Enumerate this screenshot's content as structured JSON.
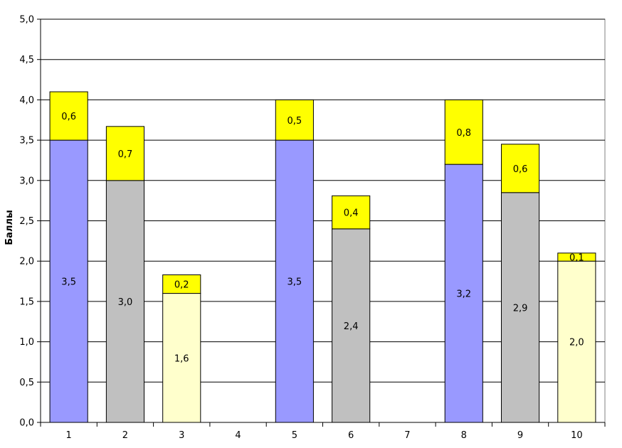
{
  "chart_data": {
    "type": "bar",
    "stacked": true,
    "title": "",
    "xlabel": "",
    "ylabel": "Баллы",
    "ylim": [
      0,
      5
    ],
    "grid": true,
    "categories": [
      "1",
      "2",
      "3",
      "4",
      "5",
      "6",
      "7",
      "8",
      "9",
      "10"
    ],
    "y_ticks": [
      "0,0",
      "0,5",
      "1,0",
      "1,5",
      "2,0",
      "2,5",
      "3,0",
      "3,5",
      "4,0",
      "4,5",
      "5,0"
    ],
    "y_tick_values": [
      0,
      0.5,
      1,
      1.5,
      2,
      2.5,
      3,
      3.5,
      4,
      4.5,
      5
    ],
    "series": [
      {
        "role": "base",
        "values": [
          3.5,
          3.0,
          1.6,
          null,
          3.5,
          2.4,
          null,
          3.2,
          2.85,
          2.0
        ],
        "labels": [
          "3,5",
          "3,0",
          "1,6",
          "",
          "3,5",
          "2,4",
          "",
          "3,2",
          "2,9",
          "2,0"
        ],
        "colors": [
          "#9999ff",
          "#c0c0c0",
          "#ffffcc",
          "",
          "#9999ff",
          "#c0c0c0",
          "",
          "#9999ff",
          "#c0c0c0",
          "#ffffcc"
        ]
      },
      {
        "role": "top",
        "values": [
          0.6,
          0.67,
          0.23,
          null,
          0.5,
          0.41,
          null,
          0.8,
          0.6,
          0.1
        ],
        "labels": [
          "0,6",
          "0,7",
          "0,2",
          "",
          "0,5",
          "0,4",
          "",
          "0,8",
          "0,6",
          "0,1"
        ],
        "color": "#ffff00"
      }
    ]
  }
}
